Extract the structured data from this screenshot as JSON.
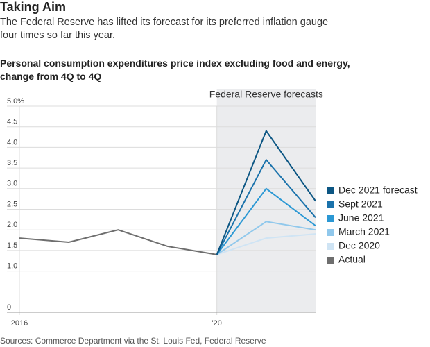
{
  "chart_data": {
    "type": "line",
    "title": "Taking Aim",
    "subtitle": "The Federal Reserve has lifted its forecast for its preferred inflation gauge four times so far this year.",
    "chart_title": "Personal consumption expenditures price index excluding food and energy, change from 4Q to 4Q",
    "source": "Sources: Commerce Department via the St. Louis Fed, Federal Reserve",
    "shaded_region": {
      "x": [
        2020,
        2022
      ],
      "label": "Federal Reserve forecasts"
    },
    "xlim": [
      2016,
      2022
    ],
    "xticks": [
      2016,
      {
        "value": 2020,
        "label": "'20"
      }
    ],
    "ylim": [
      0,
      5
    ],
    "yticks": [
      0,
      {
        "value": 1,
        "label": "1.0"
      },
      1.5,
      {
        "value": 2,
        "label": "2.0"
      },
      2.5,
      {
        "value": 3,
        "label": "3.0"
      },
      3.5,
      {
        "value": 4,
        "label": "4.0"
      },
      4.5,
      {
        "value": 5,
        "label": "5.0%"
      }
    ],
    "grid": true,
    "legend": "right",
    "series": [
      {
        "name": "Dec 2021 forecast",
        "color": "#0c5683",
        "x": [
          2020,
          2021,
          2022
        ],
        "values": [
          1.4,
          4.4,
          2.7
        ]
      },
      {
        "name": "Sept 2021",
        "color": "#1a72ab",
        "x": [
          2020,
          2021,
          2022
        ],
        "values": [
          1.4,
          3.7,
          2.3
        ]
      },
      {
        "name": "June 2021",
        "color": "#2b98d4",
        "x": [
          2020,
          2021,
          2022
        ],
        "values": [
          1.4,
          3.0,
          2.1
        ]
      },
      {
        "name": "March 2021",
        "color": "#90c8ec",
        "x": [
          2020,
          2021,
          2022
        ],
        "values": [
          1.4,
          2.2,
          2.0
        ]
      },
      {
        "name": "Dec 2020",
        "color": "#cfe4f4",
        "x": [
          2020,
          2021,
          2022
        ],
        "values": [
          1.4,
          1.8,
          1.9
        ]
      },
      {
        "name": "Actual",
        "color": "#6e6e6e",
        "x": [
          2016,
          2017,
          2018,
          2019,
          2020
        ],
        "values": [
          1.8,
          1.7,
          2.0,
          1.6,
          1.4
        ]
      }
    ]
  }
}
